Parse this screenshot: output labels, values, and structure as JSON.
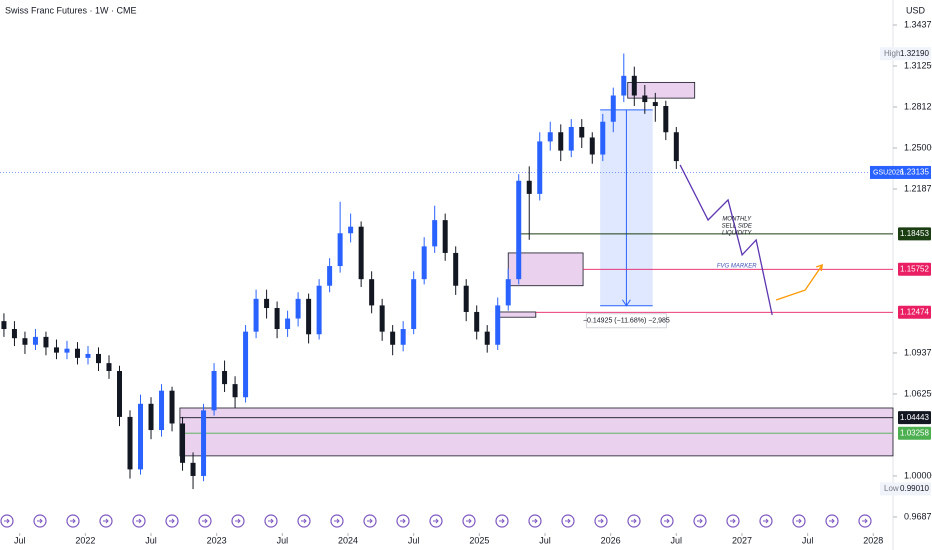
{
  "chart_data": {
    "type": "candlestick",
    "title": "Swiss Franc Futures · 1W · CME",
    "currency": "USD",
    "up_color": "#2962ff",
    "down_color": "#131722",
    "xlim": [
      2021.35,
      2028.15
    ],
    "ylim": [
      0.9588,
      1.3628
    ],
    "xticks": [
      {
        "value": 2021.5,
        "label": "Jul"
      },
      2022,
      {
        "value": 2022.5,
        "label": "Jul"
      },
      2023,
      {
        "value": 2023.5,
        "label": "Jul"
      },
      2024,
      {
        "value": 2024.5,
        "label": "Jul"
      },
      2025,
      {
        "value": 2025.5,
        "label": "Jul"
      },
      2026,
      {
        "value": 2026.5,
        "label": "Jul"
      },
      2027,
      {
        "value": 2027.5,
        "label": "Jul"
      },
      2028
    ],
    "yticks": [
      1.34375,
      {
        "value": 1.3125,
        "label": "1.31250"
      },
      1.28125,
      {
        "value": 1.25,
        "label": "1.25000"
      },
      1.21875,
      1.09375,
      {
        "value": 1.0625,
        "label": "1.06250"
      },
      {
        "value": 1.0,
        "label": "1.00000"
      },
      0.96875
    ],
    "x": [
      2021.38,
      2021.46,
      2021.54,
      2021.62,
      2021.7,
      2021.78,
      2021.86,
      2021.94,
      2022.02,
      2022.1,
      2022.18,
      2022.26,
      2022.34,
      2022.42,
      2022.5,
      2022.58,
      2022.66,
      2022.74,
      2022.82,
      2022.9,
      2022.98,
      2023.06,
      2023.14,
      2023.22,
      2023.3,
      2023.38,
      2023.46,
      2023.54,
      2023.62,
      2023.7,
      2023.78,
      2023.86,
      2023.94,
      2024.02,
      2024.1,
      2024.18,
      2024.26,
      2024.34,
      2024.42,
      2024.5,
      2024.58,
      2024.66,
      2024.74,
      2024.82,
      2024.9,
      2024.98,
      2025.06,
      2025.14,
      2025.22,
      2025.3,
      2025.38,
      2025.46,
      2025.54,
      2025.62,
      2025.7,
      2025.78,
      2025.86,
      2025.94,
      2026.02,
      2026.1,
      2026.18,
      2026.26,
      2026.34,
      2026.42,
      2026.5
    ],
    "open": [
      1.118,
      1.112,
      1.105,
      1.1,
      1.106,
      1.098,
      1.094,
      1.097,
      1.09,
      1.093,
      1.086,
      1.08,
      1.045,
      1.005,
      1.055,
      1.035,
      1.065,
      1.04,
      1.01,
      1.0,
      1.05,
      1.08,
      1.07,
      1.06,
      1.11,
      1.135,
      1.128,
      1.112,
      1.12,
      1.135,
      1.108,
      1.145,
      1.16,
      1.185,
      1.19,
      1.15,
      1.13,
      1.11,
      1.1,
      1.112,
      1.15,
      1.175,
      1.195,
      1.17,
      1.145,
      1.125,
      1.11,
      1.1,
      1.13,
      1.15,
      1.225,
      1.215,
      1.255,
      1.262,
      1.248,
      1.266,
      1.258,
      1.245,
      1.27,
      1.29,
      1.305,
      1.29,
      1.285,
      1.282,
      1.262
    ],
    "high": [
      1.124,
      1.118,
      1.11,
      1.112,
      1.11,
      1.104,
      1.103,
      1.102,
      1.099,
      1.098,
      1.092,
      1.084,
      1.05,
      1.062,
      1.06,
      1.07,
      1.068,
      1.045,
      1.018,
      1.055,
      1.086,
      1.088,
      1.076,
      1.115,
      1.142,
      1.142,
      1.133,
      1.126,
      1.14,
      1.139,
      1.15,
      1.166,
      1.209,
      1.2,
      1.194,
      1.156,
      1.135,
      1.115,
      1.118,
      1.156,
      1.182,
      1.206,
      1.2,
      1.175,
      1.15,
      1.13,
      1.115,
      1.136,
      1.158,
      1.23,
      1.236,
      1.262,
      1.27,
      1.268,
      1.272,
      1.272,
      1.262,
      1.276,
      1.296,
      1.322,
      1.312,
      1.298,
      1.292,
      1.286,
      1.266
    ],
    "low": [
      1.106,
      1.099,
      1.093,
      1.096,
      1.092,
      1.089,
      1.089,
      1.085,
      1.085,
      1.08,
      1.074,
      1.038,
      0.998,
      1.001,
      1.028,
      1.03,
      1.034,
      1.004,
      0.99,
      0.996,
      1.046,
      1.064,
      1.052,
      1.056,
      1.105,
      1.12,
      1.105,
      1.106,
      1.114,
      1.101,
      1.104,
      1.14,
      1.155,
      1.178,
      1.144,
      1.124,
      1.103,
      1.092,
      1.095,
      1.108,
      1.146,
      1.17,
      1.164,
      1.138,
      1.118,
      1.104,
      1.094,
      1.096,
      1.126,
      1.146,
      1.18,
      1.21,
      1.248,
      1.24,
      1.243,
      1.25,
      1.238,
      1.24,
      1.262,
      1.285,
      1.282,
      1.276,
      1.27,
      1.256,
      1.234
    ],
    "close": [
      1.112,
      1.105,
      1.1,
      1.106,
      1.098,
      1.094,
      1.097,
      1.09,
      1.093,
      1.086,
      1.08,
      1.045,
      1.005,
      1.055,
      1.035,
      1.065,
      1.04,
      1.01,
      1.0,
      1.05,
      1.08,
      1.07,
      1.06,
      1.11,
      1.135,
      1.128,
      1.112,
      1.12,
      1.135,
      1.108,
      1.145,
      1.16,
      1.185,
      1.19,
      1.15,
      1.13,
      1.11,
      1.1,
      1.112,
      1.15,
      1.175,
      1.195,
      1.17,
      1.145,
      1.125,
      1.11,
      1.1,
      1.13,
      1.15,
      1.225,
      1.215,
      1.255,
      1.262,
      1.248,
      1.266,
      1.258,
      1.245,
      1.27,
      1.29,
      1.305,
      1.29,
      1.285,
      1.282,
      1.262,
      1.24
    ],
    "zones": [
      {
        "start": 2026.13,
        "end": 2026.64,
        "top": 1.3,
        "bottom": 1.288,
        "color": "#e1bee7"
      },
      {
        "start": 2025.22,
        "end": 2025.79,
        "top": 1.17,
        "bottom": 1.145,
        "color": "#e1bee7"
      },
      {
        "start": 2025.14,
        "end": 2025.43,
        "top": 1.125,
        "bottom": 1.121,
        "color": "#e1bee7"
      },
      {
        "start": 2022.72,
        "end": 2028.15,
        "top": 1.0518,
        "bottom": 1.0153,
        "color": "#e1bee7"
      }
    ],
    "levels": [
      {
        "value": 1.18453,
        "label": "1.18453",
        "start": 2025.31,
        "color": "#1b3d12"
      },
      {
        "value": 1.15752,
        "label": "1.15752",
        "start": 2025.79,
        "color": "#e91e63"
      },
      {
        "value": 1.12474,
        "label": "1.12474",
        "start": 2025.43,
        "color": "#e91e63"
      },
      {
        "value": 1.04443,
        "label": "1.04443",
        "start": 2022.72,
        "color": "#131722"
      },
      {
        "value": 1.03258,
        "label": "1.03258",
        "start": 2022.72,
        "color": "#4caf50"
      }
    ],
    "last_price": {
      "name": "GSU2026",
      "value": 1.23135,
      "label": "1.23135",
      "color": "#2962ff"
    },
    "high_mark": {
      "name": "High",
      "value": 1.3219,
      "label": "1.32190"
    },
    "low_mark": {
      "name": "Low",
      "value": 0.9901,
      "label": "0.99010"
    },
    "measure": {
      "start": 2025.92,
      "end": 2026.32,
      "from": 1.279,
      "to": 1.12975,
      "label": "−0.14925 (−11.68%) −2,985"
    },
    "projection": {
      "x": [
        2026.529,
        2026.742,
        2026.894,
        2027.001,
        2027.108,
        2027.23
      ],
      "values": [
        1.2371,
        1.1951,
        1.2104,
        1.1685,
        1.1799,
        1.1227
      ],
      "color": "#5e35b1"
    },
    "target": {
      "x": [
        2027.26,
        2027.481,
        2027.611
      ],
      "values": [
        1.1341,
        1.1417,
        1.1608
      ],
      "color": "#ff9800"
    },
    "annotations": [
      {
        "lines": [
          "MONTHLY",
          "SELL SIDE",
          "LIQUIDITY"
        ],
        "x": 2026.96,
        "y": 1.196,
        "color": "#131722"
      },
      {
        "lines": [
          "FVG MARKER"
        ],
        "x": 2026.96,
        "y": 1.16,
        "color": "#3f51b5"
      }
    ]
  }
}
